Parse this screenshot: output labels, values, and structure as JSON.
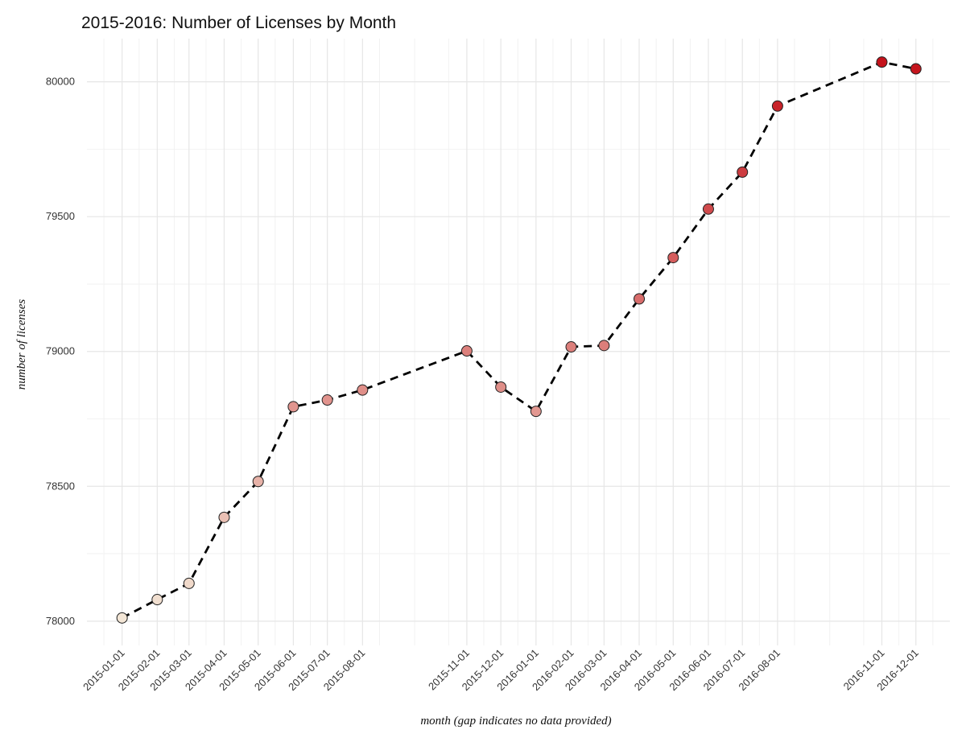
{
  "chart_data": {
    "type": "scatter",
    "title": "2015-2016: Number of Licenses by Month",
    "xlabel": "month (gap indicates no data provided)",
    "ylabel": "number of licenses",
    "x_tick_labels": [
      "2015-01-01",
      "2015-02-01",
      "2015-03-01",
      "2015-04-01",
      "2015-05-01",
      "2015-06-01",
      "2015-07-01",
      "2015-08-01",
      "2015-11-01",
      "2015-12-01",
      "2016-01-01",
      "2016-02-01",
      "2016-03-01",
      "2016-04-01",
      "2016-05-01",
      "2016-06-01",
      "2016-07-01",
      "2016-08-01",
      "2016-11-01",
      "2016-12-01"
    ],
    "y_ticks": [
      78000,
      78500,
      79000,
      79500,
      80000
    ],
    "ylim": [
      77910,
      80160
    ],
    "xlim": [
      "2014-12-01",
      "2016-12-31"
    ],
    "grid": true,
    "legend": "none",
    "line_style": "dashed",
    "color_low": "#f3e6d6",
    "color_high": "#c4121b",
    "series": [
      {
        "x": [
          "2015-01-01",
          "2015-02-01",
          "2015-03-01",
          "2015-04-01",
          "2015-05-01",
          "2015-06-01",
          "2015-07-01",
          "2015-08-01",
          "2015-11-01",
          "2015-12-01",
          "2016-01-01",
          "2016-02-01",
          "2016-03-01",
          "2016-04-01",
          "2016-05-01",
          "2016-06-01",
          "2016-07-01",
          "2016-08-01",
          "2016-11-01",
          "2016-12-01"
        ],
        "y": [
          78012,
          78080,
          78140,
          78385,
          78518,
          78795,
          78820,
          78857,
          79002,
          78868,
          78778,
          79017,
          79022,
          79195,
          79348,
          79528,
          79665,
          79910,
          80073,
          80048
        ]
      }
    ]
  }
}
